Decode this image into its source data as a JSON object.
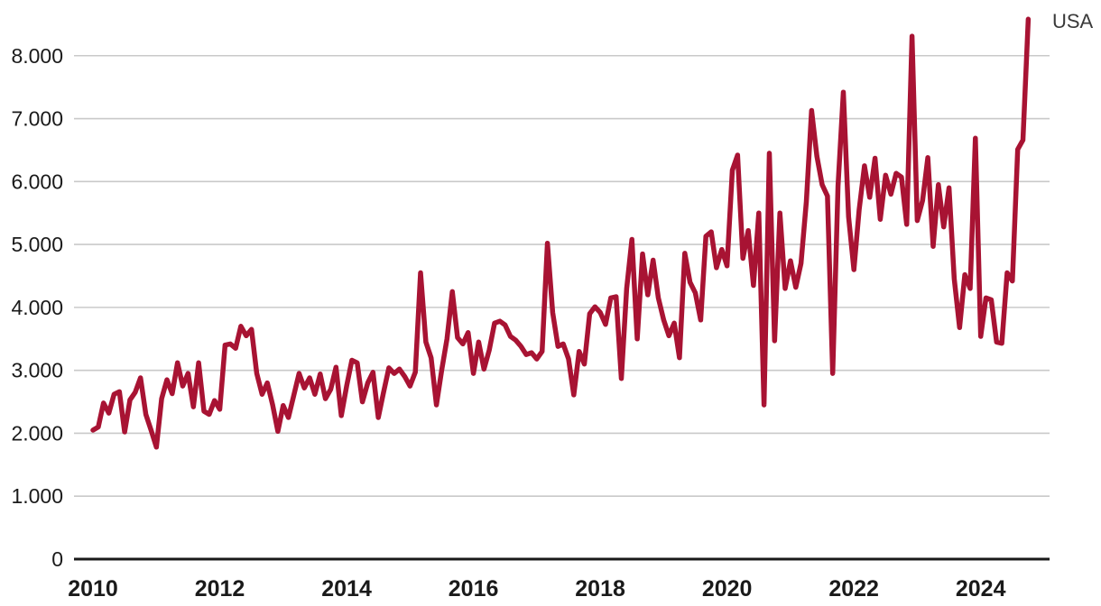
{
  "chart_data": {
    "type": "line",
    "title": "",
    "series_label": "USA",
    "frequency": "monthly",
    "x_start": "2010-01",
    "x_end": "2024-10",
    "x_tick_labels": [
      "2010",
      "2012",
      "2014",
      "2016",
      "2018",
      "2020",
      "2022",
      "2024"
    ],
    "y_tick_labels": [
      "0",
      "1.000",
      "2.000",
      "3.000",
      "4.000",
      "5.000",
      "6.000",
      "7.000",
      "8.000"
    ],
    "y_tick_step": 1000,
    "ylim": [
      0,
      8700
    ],
    "grid": "horizontal",
    "legend_position": "top-right",
    "line_color": "#A81333",
    "grid_color": "#C9C9C9",
    "axis_color": "#1A1A1A",
    "tick_text_color": "#1A1A1A",
    "series_label_color": "#3A3A3A",
    "background_color": "#FFFFFF",
    "series": [
      {
        "name": "USA",
        "values": [
          2050,
          2100,
          2480,
          2320,
          2620,
          2660,
          2020,
          2530,
          2650,
          2880,
          2300,
          2050,
          1780,
          2550,
          2850,
          2630,
          3120,
          2750,
          2950,
          2420,
          3120,
          2350,
          2300,
          2520,
          2380,
          3400,
          3420,
          3350,
          3700,
          3550,
          3650,
          2950,
          2620,
          2800,
          2450,
          2030,
          2440,
          2250,
          2600,
          2950,
          2720,
          2880,
          2620,
          2940,
          2550,
          2700,
          3050,
          2280,
          2750,
          3160,
          3120,
          2500,
          2800,
          2970,
          2250,
          2650,
          3040,
          2950,
          3020,
          2900,
          2750,
          2970,
          4550,
          3450,
          3200,
          2450,
          3000,
          3500,
          4250,
          3520,
          3420,
          3600,
          2950,
          3450,
          3020,
          3320,
          3750,
          3780,
          3720,
          3540,
          3480,
          3380,
          3250,
          3280,
          3180,
          3300,
          5020,
          3920,
          3380,
          3420,
          3180,
          2610,
          3300,
          3100,
          3900,
          4010,
          3920,
          3730,
          4150,
          4170,
          2870,
          4300,
          5080,
          3500,
          4850,
          4200,
          4750,
          4150,
          3800,
          3550,
          3750,
          3200,
          4860,
          4400,
          4230,
          3800,
          5130,
          5200,
          4630,
          4920,
          4660,
          6180,
          6420,
          4780,
          5220,
          4350,
          5500,
          2450,
          6450,
          3470,
          5500,
          4300,
          4740,
          4320,
          4700,
          5680,
          7130,
          6400,
          5950,
          5770,
          2950,
          5930,
          7420,
          5440,
          4600,
          5550,
          6250,
          5750,
          6370,
          5400,
          6100,
          5800,
          6130,
          6070,
          5320,
          8310,
          5380,
          5700,
          6380,
          4970,
          5950,
          5280,
          5900,
          4450,
          3680,
          4520,
          4300,
          6690,
          3540,
          4150,
          4120,
          3450,
          3430,
          4550,
          4420,
          6510,
          6660,
          8580
        ]
      }
    ]
  }
}
